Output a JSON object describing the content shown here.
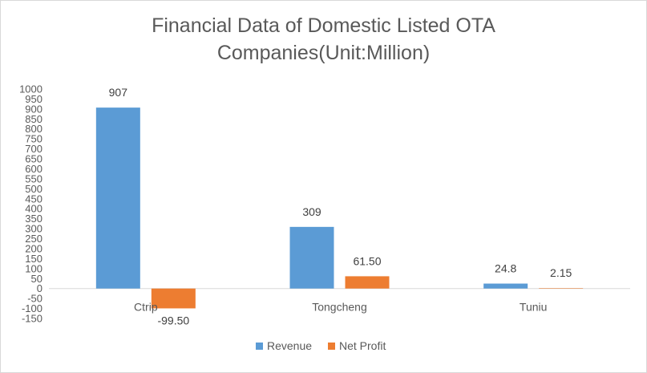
{
  "chart_data": {
    "type": "bar",
    "title": "Financial Data of Domestic Listed OTA Companies(Unit:Million)",
    "title_lines": [
      "Financial Data of Domestic Listed OTA",
      "Companies(Unit:Million)"
    ],
    "categories": [
      "Ctrip",
      "Tongcheng",
      "Tuniu"
    ],
    "series": [
      {
        "name": "Revenue",
        "values": [
          907,
          309,
          24.8
        ],
        "labels": [
          "907",
          "309",
          "24.8"
        ],
        "color": "#5b9bd5"
      },
      {
        "name": "Net Profit",
        "values": [
          -99.5,
          61.5,
          2.15
        ],
        "labels": [
          "-99.50",
          "61.50",
          "2.15"
        ],
        "color": "#ed7d31"
      }
    ],
    "ylim": [
      -150,
      1000
    ],
    "ytick_step": 50,
    "yticks": [
      "1000",
      "950",
      "900",
      "850",
      "800",
      "750",
      "700",
      "650",
      "600",
      "550",
      "500",
      "450",
      "400",
      "350",
      "300",
      "250",
      "200",
      "150",
      "100",
      "50",
      "0",
      "-50",
      "-100",
      "-150"
    ],
    "xlabel": "",
    "ylabel": "",
    "grid": false,
    "legend_position": "bottom"
  }
}
